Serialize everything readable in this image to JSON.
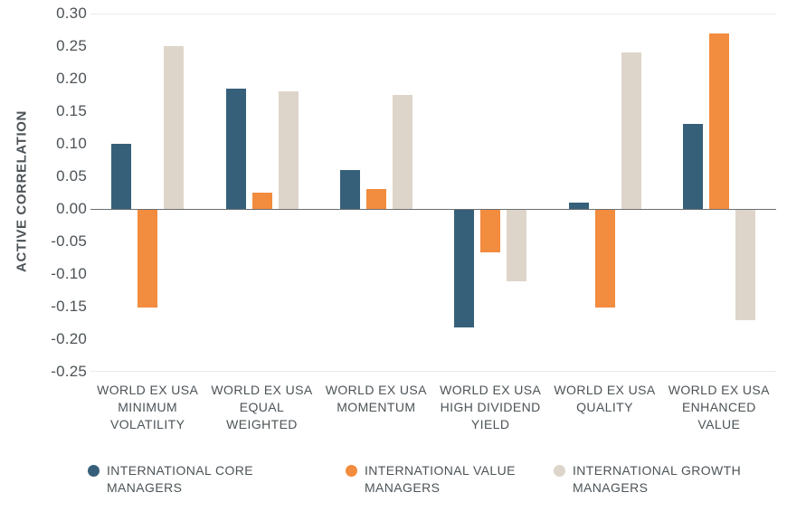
{
  "chart_data": {
    "type": "bar",
    "title": "",
    "xlabel": "",
    "ylabel": "ACTIVE CORRELATION",
    "ylim": [
      -0.25,
      0.3
    ],
    "ytick_step": 0.05,
    "ytick_labels": [
      "0.30",
      "0.25",
      "0.20",
      "0.15",
      "0.10",
      "0.05",
      "0.00",
      "-0.05",
      "-0.10",
      "-0.15",
      "-0.20",
      "-0.25"
    ],
    "grid_lines_at": [
      0.3,
      -0.25
    ],
    "zero_line_at": 0.0,
    "legend_position": "bottom",
    "categories": [
      [
        "WORLD EX USA",
        "MINIMUM",
        "VOLATILITY"
      ],
      [
        "WORLD EX USA",
        "EQUAL",
        "WEIGHTED"
      ],
      [
        "WORLD EX USA",
        "MOMENTUM"
      ],
      [
        "WORLD EX USA",
        "HIGH DIVIDEND",
        "YIELD"
      ],
      [
        "WORLD EX USA",
        "QUALITY"
      ],
      [
        "WORLD EX USA",
        "ENHANCED",
        "VALUE"
      ]
    ],
    "series": [
      {
        "name": "INTERNATIONAL CORE MANAGERS",
        "legend_lines": [
          "INTERNATIONAL CORE",
          "MANAGERS"
        ],
        "color": "#36607A",
        "values": [
          0.1,
          0.185,
          0.06,
          -0.18,
          0.01,
          0.13
        ]
      },
      {
        "name": "INTERNATIONAL VALUE MANAGERS",
        "legend_lines": [
          "INTERNATIONAL VALUE",
          "MANAGERS"
        ],
        "color": "#F28C3E",
        "values": [
          -0.15,
          0.025,
          0.03,
          -0.065,
          -0.15,
          0.27
        ]
      },
      {
        "name": "INTERNATIONAL GROWTH MANAGERS",
        "legend_lines": [
          "INTERNATIONAL GROWTH",
          "MANAGERS"
        ],
        "color": "#DED5CA",
        "values": [
          0.25,
          0.18,
          0.175,
          -0.11,
          0.24,
          -0.17
        ]
      }
    ]
  },
  "style": {
    "background": "#FFFFFF",
    "text_color": "#4C5357",
    "axis_line_color": "#6B6E70",
    "grid_line_color": "#EDEAE6"
  }
}
